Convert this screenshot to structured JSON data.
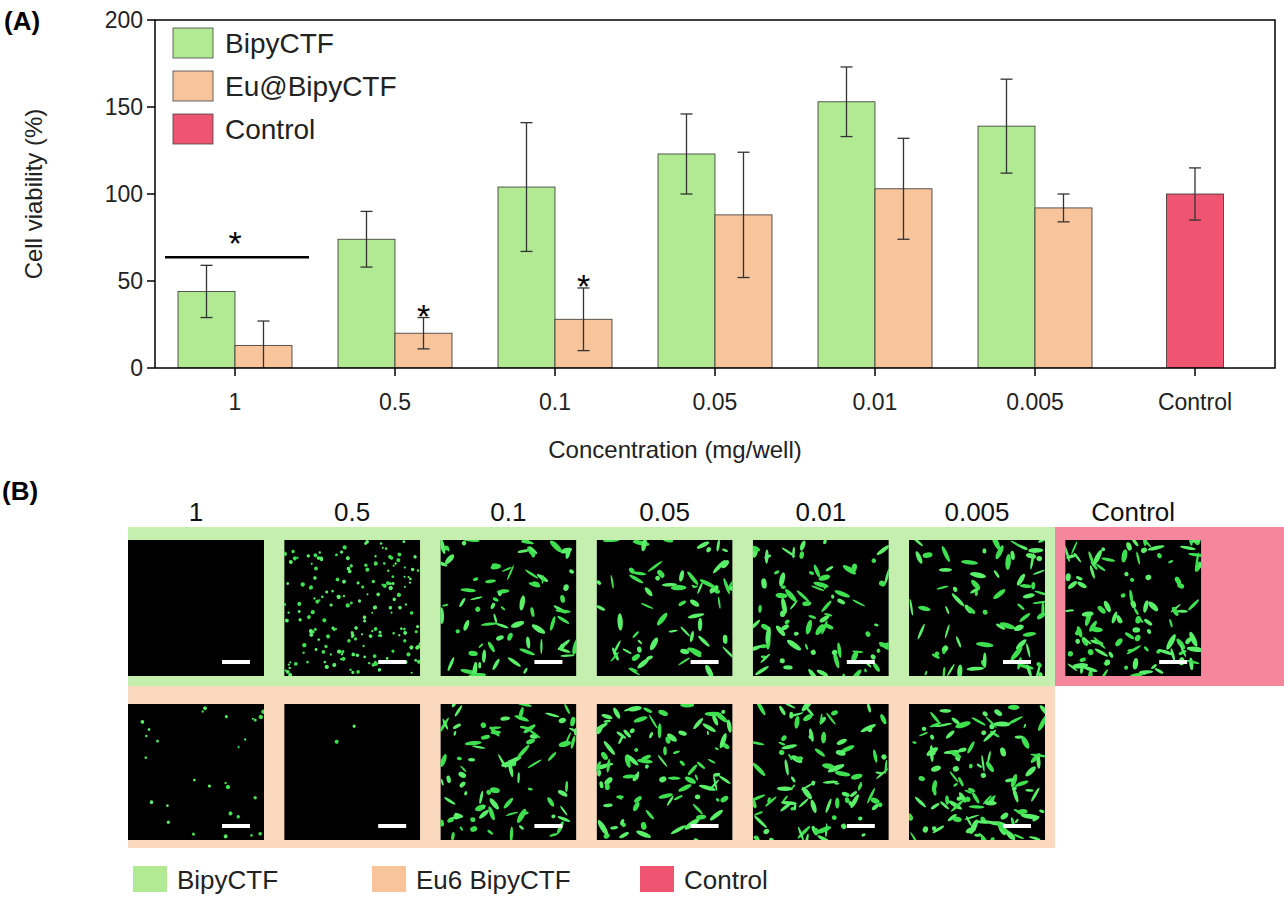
{
  "chart_data": {
    "type": "bar",
    "x_label": "Concentration (mg/well)",
    "y_label": "Cell viability (%)",
    "categories": [
      "1",
      "0.5",
      "0.1",
      "0.05",
      "0.01",
      "0.005",
      "Control"
    ],
    "series": [
      {
        "name": "BipyCTF",
        "color": "#b2ea93",
        "values": [
          44,
          74,
          104,
          123,
          153,
          139,
          null
        ],
        "errors": [
          15,
          16,
          37,
          23,
          20,
          27,
          null
        ]
      },
      {
        "name": "Eu@BipyCTF",
        "color": "#f8c49c",
        "values": [
          13,
          20,
          28,
          88,
          103,
          92,
          null
        ],
        "errors": [
          14,
          9,
          18,
          36,
          29,
          8,
          null
        ]
      },
      {
        "name": "Control",
        "color": "#ef5470",
        "values": [
          null,
          null,
          null,
          null,
          null,
          null,
          100
        ],
        "errors": [
          null,
          null,
          null,
          null,
          null,
          null,
          15
        ]
      }
    ],
    "annotations": [
      {
        "text": "*",
        "category": "1"
      },
      {
        "text": "*",
        "category": "0.5",
        "series": "Eu@BipyCTF"
      },
      {
        "text": "*",
        "category": "0.1",
        "series": "Eu@BipyCTF"
      }
    ],
    "ylim": [
      0,
      200
    ],
    "yticks": [
      0,
      50,
      100,
      150,
      200
    ],
    "grid": false,
    "legend": "top-left"
  },
  "panel_labels": [
    "(A)",
    "(B)"
  ],
  "panel_b": {
    "columns": [
      "1",
      "0.5",
      "0.1",
      "0.05",
      "0.01",
      "0.005",
      "Control"
    ],
    "legend": [
      {
        "name": "BipyCTF",
        "color": "#b2ea93"
      },
      {
        "name": "Eu6 BipyCTF",
        "color": "#f8c49c"
      },
      {
        "name": "Control",
        "color": "#ef5470"
      }
    ]
  }
}
